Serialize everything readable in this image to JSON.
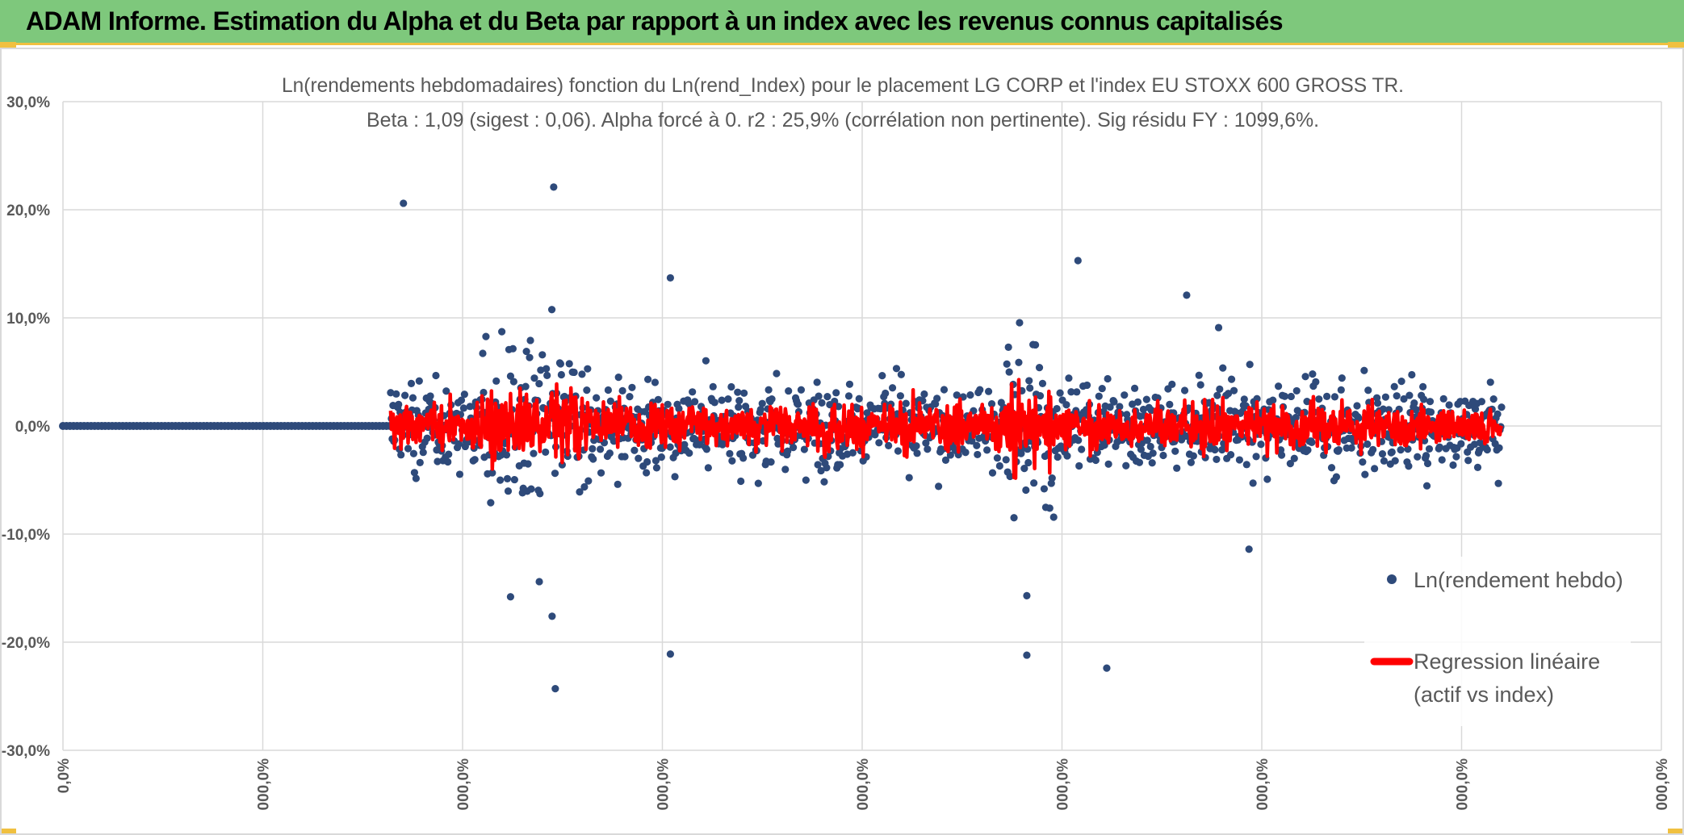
{
  "header": {
    "title": "ADAM Informe. Estimation du Alpha et du Beta par rapport à un index avec les revenus connus capitalisés"
  },
  "chart_data": {
    "type": "scatter",
    "title": "Ln(rendements hebdomadaires) fonction du Ln(rend_Index) pour le placement LG CORP et l'index EU STOXX 600 GROSS TR.",
    "subtitle": "Beta : 1,09 (sigest : 0,06). Alpha forcé à 0. r2 : 25,9% (corrélation non pertinente). Sig résidu FY : 1099,6%.",
    "ylim": [
      -0.3,
      0.3
    ],
    "y_ticks": [
      "30,0%",
      "20,0%",
      "10,0%",
      "0,0%",
      "-10,0%",
      "-20,0%",
      "-30,0%"
    ],
    "x_ticks": [
      "0,0%",
      "000,0%",
      "000,0%",
      "000,0%",
      "000,0%",
      "000,0%",
      "000,0%",
      "000,0%",
      "000,0%"
    ],
    "series": [
      {
        "name": "Ln(rendement hebdo)",
        "kind": "scatter",
        "color": "#2e4a7a"
      },
      {
        "name": "Regression linéaire (actif vs index)",
        "kind": "line",
        "color": "#ff0000"
      }
    ],
    "legend": {
      "scatter_label": "Ln(rendement hebdo)",
      "line_label_1": "Regression linéaire",
      "line_label_2": "(actif vs index)"
    },
    "notable_points": [
      {
        "x": 0.213,
        "y": 0.206
      },
      {
        "x": 0.307,
        "y": 0.221
      },
      {
        "x": 0.38,
        "y": 0.137
      },
      {
        "x": 0.635,
        "y": 0.153
      },
      {
        "x": 0.703,
        "y": 0.121
      },
      {
        "x": 0.308,
        "y": -0.243
      },
      {
        "x": 0.306,
        "y": -0.176
      },
      {
        "x": 0.38,
        "y": -0.211
      },
      {
        "x": 0.603,
        "y": -0.212
      },
      {
        "x": 0.653,
        "y": -0.224
      },
      {
        "x": 0.298,
        "y": -0.144
      },
      {
        "x": 0.28,
        "y": -0.158
      },
      {
        "x": 0.603,
        "y": -0.157
      },
      {
        "x": 0.742,
        "y": -0.114
      },
      {
        "x": 0.723,
        "y": 0.091
      }
    ],
    "n_points_approx": 1400,
    "flat_segment": {
      "x_from": 0.0,
      "x_to": 0.205,
      "y": 0.0
    }
  }
}
